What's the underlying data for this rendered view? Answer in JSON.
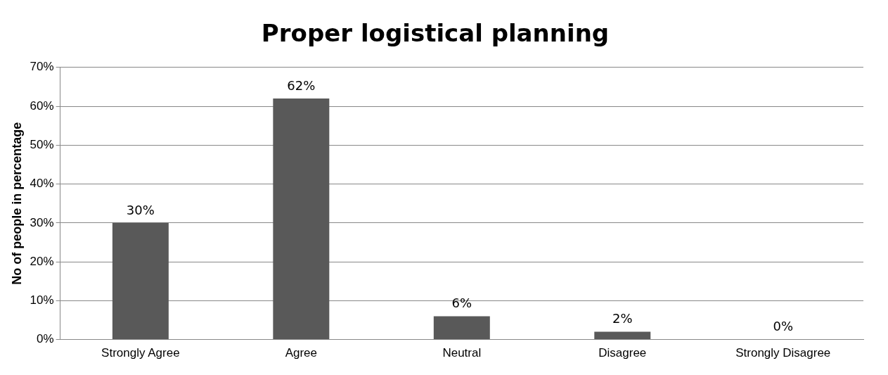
{
  "chart_data": {
    "type": "bar",
    "title": "Proper logistical planning",
    "ylabel": "No of people in percentage",
    "categories": [
      "Strongly Agree",
      "Agree",
      "Neutral",
      "Disagree",
      "Strongly Disagree"
    ],
    "values": [
      30,
      62,
      6,
      2,
      0
    ],
    "value_labels": [
      "30%",
      "62%",
      "6%",
      "2%",
      "0%"
    ],
    "color": "#595959",
    "ylim": [
      0,
      70
    ],
    "yticks": [
      {
        "value": 0,
        "label": "0%"
      },
      {
        "value": 10,
        "label": "10%"
      },
      {
        "value": 20,
        "label": "20%"
      },
      {
        "value": 30,
        "label": "30%"
      },
      {
        "value": 40,
        "label": "40%"
      },
      {
        "value": 50,
        "label": "50%"
      },
      {
        "value": 60,
        "label": "60%"
      },
      {
        "value": 70,
        "label": "70%"
      }
    ],
    "grid": "y",
    "legend": false
  }
}
